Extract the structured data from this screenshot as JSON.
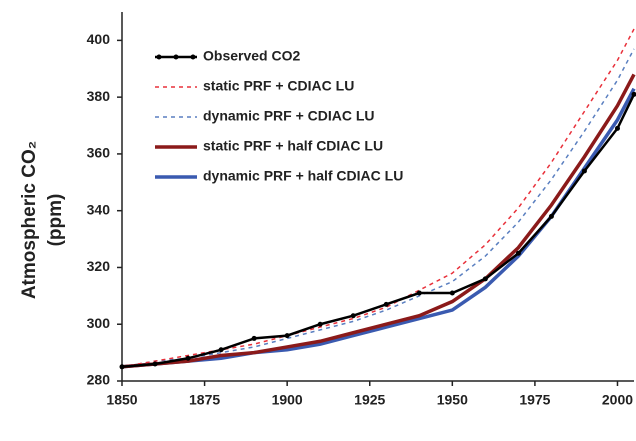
{
  "chart_data": {
    "type": "line",
    "ylabel": [
      "Atmospheric CO₂",
      "(ppm)"
    ],
    "x": [
      1850,
      1860,
      1870,
      1880,
      1890,
      1900,
      1910,
      1920,
      1930,
      1940,
      1950,
      1960,
      1970,
      1980,
      1990,
      2000,
      2005
    ],
    "series": [
      {
        "name": "Observed CO2",
        "color": "#000000",
        "width": 2.5,
        "dash": false,
        "marker": true,
        "values": [
          285,
          286,
          288,
          291,
          295,
          296,
          300,
          303,
          307,
          311,
          311,
          316,
          325,
          338,
          354,
          369,
          381
        ]
      },
      {
        "name": "static PRF + CDIAC LU",
        "color": "#e8303a",
        "width": 1.5,
        "dash": true,
        "marker": false,
        "values": [
          285,
          287,
          289,
          291,
          293,
          296,
          299,
          302,
          306,
          312,
          318,
          328,
          341,
          357,
          375,
          393,
          404
        ]
      },
      {
        "name": "dynamic PRF + CDIAC LU",
        "color": "#5a7fc0",
        "width": 1.5,
        "dash": true,
        "marker": false,
        "values": [
          285,
          287,
          288,
          290,
          292,
          295,
          298,
          301,
          305,
          310,
          315,
          324,
          336,
          351,
          368,
          386,
          397
        ]
      },
      {
        "name": "static PRF + half CDIAC LU",
        "color": "#8b1a1a",
        "width": 3.5,
        "dash": false,
        "marker": false,
        "values": [
          285,
          286,
          287,
          289,
          290,
          292,
          294,
          297,
          300,
          303,
          308,
          316,
          327,
          342,
          359,
          377,
          388
        ]
      },
      {
        "name": "dynamic PRF + half CDIAC LU",
        "color": "#3a5ab0",
        "width": 3.5,
        "dash": false,
        "marker": false,
        "values": [
          285,
          286,
          287,
          288,
          290,
          291,
          293,
          296,
          299,
          302,
          305,
          313,
          324,
          338,
          355,
          372,
          383
        ]
      }
    ],
    "xlim": [
      1850,
      2005
    ],
    "xticks": [
      1850,
      1875,
      1900,
      1925,
      1950,
      1975,
      2000
    ],
    "ylim": [
      280,
      410
    ],
    "yticks": [
      280,
      300,
      320,
      340,
      360,
      380,
      400
    ],
    "grid": false,
    "legend": "upper left"
  }
}
